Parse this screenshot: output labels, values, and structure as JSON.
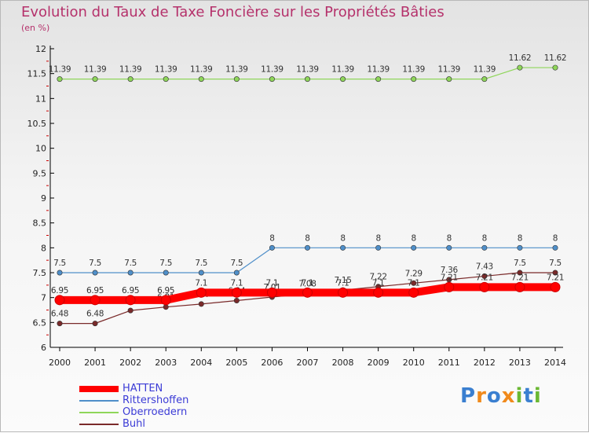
{
  "chart_data": {
    "type": "line",
    "title": "Evolution du Taux de Taxe Foncière sur les Propriétés Bâties",
    "unit_label": "(en %)",
    "xlabel": "",
    "ylabel": "(en %)",
    "x": [
      "2000",
      "2001",
      "2002",
      "2003",
      "2004",
      "2005",
      "2006",
      "2007",
      "2008",
      "2009",
      "2010",
      "2011",
      "2012",
      "2013",
      "2014"
    ],
    "ylim": [
      6,
      12
    ],
    "yticks": [
      6,
      6.5,
      7,
      7.5,
      8,
      8.5,
      9,
      9.5,
      10,
      10.5,
      11,
      11.5,
      12
    ],
    "ytick_labels": [
      "6",
      "6.5",
      "7",
      "7.5",
      "8",
      "8.5",
      "9",
      "9.5",
      "10",
      "10.5",
      "11",
      "11.5",
      "12"
    ],
    "grid": false,
    "legend_position": "bottom-left",
    "series": [
      {
        "name": "HATTEN",
        "color": "#ff0000",
        "values": [
          6.95,
          6.95,
          6.95,
          6.95,
          7.1,
          7.1,
          7.1,
          7.1,
          7.1,
          7.1,
          7.1,
          7.21,
          7.21,
          7.21,
          7.21
        ],
        "labels": [
          "6.95",
          "6.95",
          "6.95",
          "6.95",
          "7.1",
          "7.1",
          "7.1",
          "7.1",
          "7.1",
          "7.1",
          "7.1",
          "7.21",
          "7.21",
          "7.21",
          "7.21"
        ]
      },
      {
        "name": "Rittershoffen",
        "color": "#4f8fc9",
        "values": [
          7.5,
          7.5,
          7.5,
          7.5,
          7.5,
          7.5,
          8,
          8,
          8,
          8,
          8,
          8,
          8,
          8,
          8
        ],
        "labels": [
          "7.5",
          "7.5",
          "7.5",
          "7.5",
          "7.5",
          "7.5",
          "8",
          "8",
          "8",
          "8",
          "8",
          "8",
          "8",
          "8",
          "8"
        ]
      },
      {
        "name": "Oberroedern",
        "color": "#8fd65a",
        "values": [
          11.39,
          11.39,
          11.39,
          11.39,
          11.39,
          11.39,
          11.39,
          11.39,
          11.39,
          11.39,
          11.39,
          11.39,
          11.39,
          11.62,
          11.62
        ],
        "labels": [
          "11.39",
          "11.39",
          "11.39",
          "11.39",
          "11.39",
          "11.39",
          "11.39",
          "11.39",
          "11.39",
          "11.39",
          "11.39",
          "11.39",
          "11.39",
          "11.62",
          "11.62"
        ]
      },
      {
        "name": "Buhl",
        "color": "#7a2a2a",
        "values": [
          6.48,
          6.48,
          6.74,
          6.81,
          6.87,
          6.94,
          7.01,
          7.08,
          7.15,
          7.22,
          7.29,
          7.36,
          7.43,
          7.5,
          7.5
        ],
        "labels": [
          "6.48",
          "6.48",
          "6.74",
          "6.81",
          "6.87",
          "6.94",
          "7.01",
          "7.08",
          "7.15",
          "7.22",
          "7.29",
          "7.36",
          "7.43",
          "7.5",
          "7.5"
        ]
      }
    ]
  },
  "logo": {
    "letters": [
      "P",
      "r",
      "o",
      "x",
      "i",
      "t",
      "i"
    ],
    "colors": [
      "#3a7fd0",
      "#f08a1c",
      "#3a7fd0",
      "#f08a1c",
      "#6bb833",
      "#3a7fd0",
      "#6bb833"
    ]
  }
}
